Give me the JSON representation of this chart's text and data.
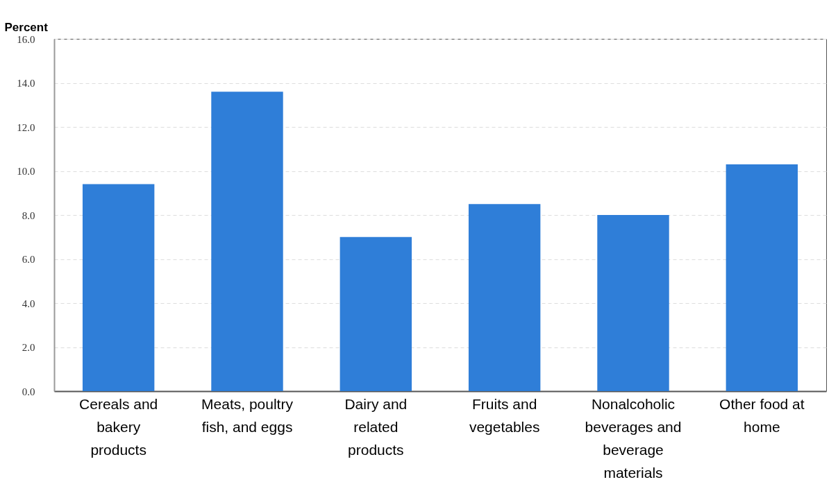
{
  "chart_data": {
    "type": "bar",
    "ylabel": "Percent",
    "categories": [
      "Cereals and bakery products",
      "Meats, poultry fish, and eggs",
      "Dairy and related products",
      "Fruits and vegetables",
      "Nonalcoholic beverages and beverage materials",
      "Other food at home"
    ],
    "values": [
      9.4,
      13.6,
      7.0,
      8.5,
      8.0,
      10.3
    ],
    "color": "#2f7ed8",
    "ylim": [
      0,
      16
    ],
    "yticks": [
      {
        "value": 0,
        "label": "0.0"
      },
      {
        "value": 2,
        "label": "2.0"
      },
      {
        "value": 4,
        "label": "4.0"
      },
      {
        "value": 6,
        "label": "6.0"
      },
      {
        "value": 8,
        "label": "8.0"
      },
      {
        "value": 10,
        "label": "10.0"
      },
      {
        "value": 12,
        "label": "12.0"
      },
      {
        "value": 14,
        "label": "14.0"
      },
      {
        "value": 16,
        "label": "16.0"
      }
    ],
    "grid": "y"
  }
}
